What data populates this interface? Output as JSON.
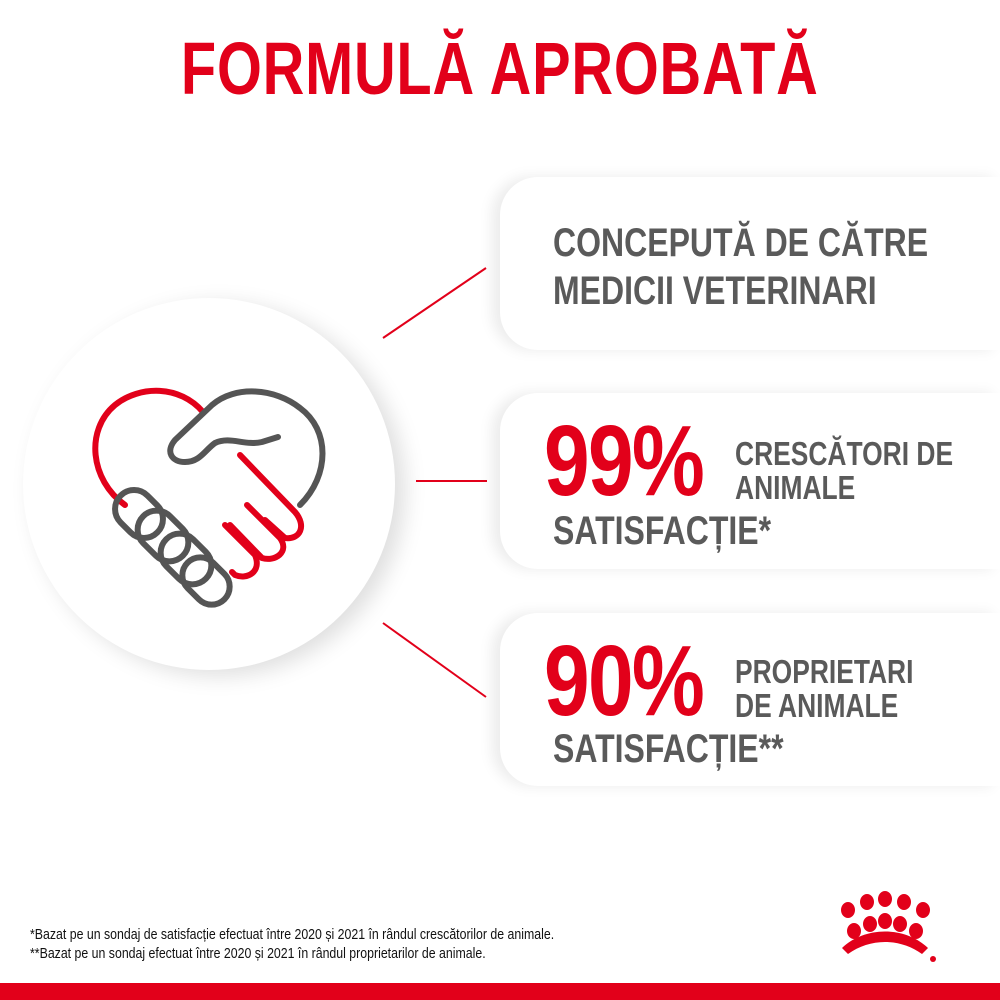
{
  "title": "FORMULĂ APROBATĂ",
  "colors": {
    "accent": "#e2001a",
    "text_gray": "#5a5a5a"
  },
  "icons": {
    "main": "handshake-heart-icon",
    "logo": "royal-canin-crown-logo"
  },
  "cards": [
    {
      "line1": "CONCEPUTĂ DE CĂTRE",
      "line2": "MEDICII VETERINARI"
    },
    {
      "percent": "99%",
      "side1": "CRESCĂTORI DE",
      "side2": "ANIMALE",
      "label": "SATISFACȚIE*"
    },
    {
      "percent": "90%",
      "side1": "PROPRIETARI",
      "side2": "DE ANIMALE",
      "label": "SATISFACȚIE**"
    }
  ],
  "footnotes": [
    "*Bazat pe un sondaj de satisfacție efectuat între 2020 și 2021 în rândul crescătorilor de animale.",
    "**Bazat pe un sondaj efectuat între 2020 și 2021 în rândul proprietarilor de animale."
  ]
}
